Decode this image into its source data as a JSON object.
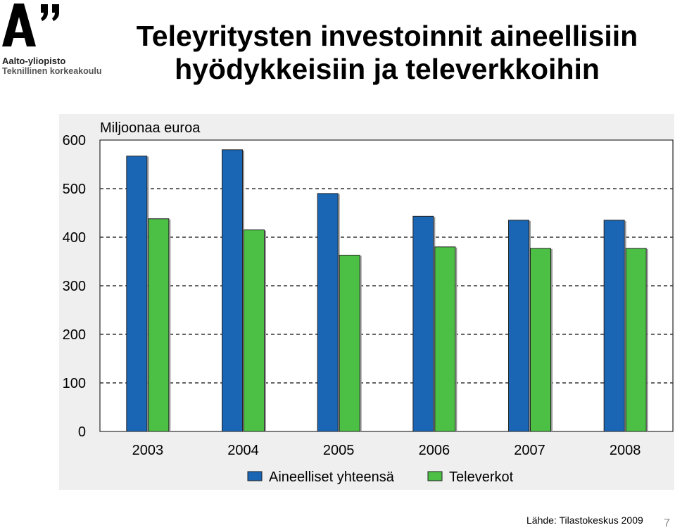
{
  "logo": {
    "organization": "Aalto-yliopisto",
    "school": "Teknillinen korkeakoulu"
  },
  "slide": {
    "title_line1": "Teleyritysten investoinnit aineellisiin",
    "title_line2": "hyödykkeisiin ja televerkkoihin",
    "source": "Lähde: Tilastokeskus 2009",
    "page_number": "7"
  },
  "colors": {
    "series1": "#1a66b5",
    "series2": "#4cbf45",
    "plot_bg": "#ffffff",
    "chart_bg": "#efefef"
  },
  "chart_data": {
    "type": "bar",
    "title": "",
    "unit_label": "Miljoonaa euroa",
    "xlabel": "",
    "ylabel": "Miljoonaa euroa",
    "categories": [
      "2003",
      "2004",
      "2005",
      "2006",
      "2007",
      "2008"
    ],
    "series": [
      {
        "name": "Aineelliset yhteensä",
        "values": [
          567,
          580,
          490,
          443,
          435,
          435
        ]
      },
      {
        "name": "Televerkot",
        "values": [
          438,
          415,
          363,
          380,
          377,
          377
        ]
      }
    ],
    "ylim": [
      0,
      600
    ],
    "yticks": [
      0,
      100,
      200,
      300,
      400,
      500,
      600
    ],
    "grid": true,
    "legend_position": "bottom"
  }
}
